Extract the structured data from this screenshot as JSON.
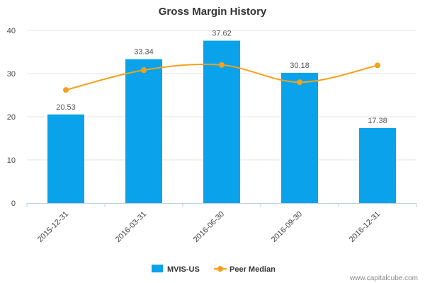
{
  "chart_data": {
    "type": "bar",
    "title": "Gross Margin History",
    "categories": [
      "2015-12-31",
      "2016-03-31",
      "2016-06-30",
      "2016-09-30",
      "2016-12-31"
    ],
    "series": [
      {
        "name": "MVIS-US",
        "kind": "bar",
        "color": "#0aa3eb",
        "values": [
          20.53,
          33.34,
          37.62,
          30.18,
          17.38
        ],
        "labels": [
          "20.53",
          "33.34",
          "37.62",
          "30.18",
          "17.38"
        ]
      },
      {
        "name": "Peer Median",
        "kind": "line",
        "color": "#f5a11a",
        "values": [
          26.2,
          30.8,
          32.0,
          28.0,
          31.9
        ]
      }
    ],
    "ylim": [
      0,
      40
    ],
    "yticks": [
      "0",
      "10",
      "20",
      "30",
      "40"
    ],
    "xlabel": "",
    "ylabel": "",
    "legend": "bottom-center",
    "grid": true
  },
  "watermark": "www.capitalcube.com"
}
